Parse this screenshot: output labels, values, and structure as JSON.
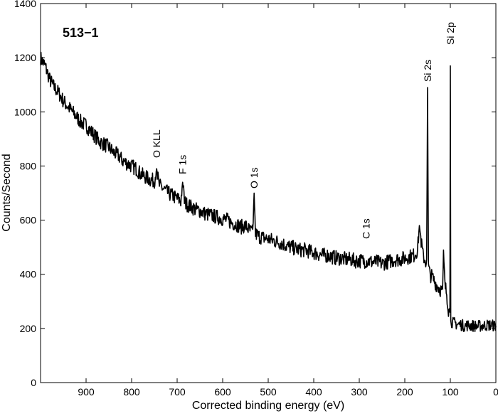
{
  "chart_data": {
    "type": "line",
    "title": "",
    "sample_label": "513−1",
    "xlabel": "Corrected binding energy (eV)",
    "ylabel": "Counts/Second",
    "xlim": [
      1000,
      0
    ],
    "x_reversed": true,
    "ylim": [
      0,
      1400
    ],
    "xticks": [
      900,
      800,
      700,
      600,
      500,
      400,
      300,
      200,
      100,
      0
    ],
    "yticks": [
      0,
      200,
      400,
      600,
      800,
      1000,
      1200,
      1400
    ],
    "grid": false,
    "line_color": "#000000",
    "series": [
      {
        "x": [
          1000,
          990,
          980,
          970,
          960,
          950,
          940,
          930,
          920,
          910,
          900,
          890,
          880,
          870,
          860,
          850,
          840,
          830,
          820,
          810,
          800,
          790,
          780,
          770,
          760,
          750,
          745,
          740,
          730,
          720,
          710,
          700,
          692,
          688,
          684,
          680,
          670,
          660,
          650,
          640,
          630,
          620,
          610,
          600,
          590,
          580,
          570,
          560,
          550,
          540,
          534,
          531,
          528,
          520,
          510,
          500,
          490,
          480,
          470,
          460,
          450,
          440,
          430,
          420,
          410,
          400,
          390,
          380,
          370,
          360,
          350,
          340,
          330,
          320,
          310,
          300,
          290,
          280,
          270,
          260,
          250,
          240,
          230,
          220,
          210,
          200,
          190,
          180,
          172,
          168,
          164,
          160,
          155,
          152,
          150,
          148,
          145,
          140,
          135,
          130,
          125,
          120,
          117,
          115,
          112,
          108,
          104,
          101,
          100,
          99,
          97,
          94,
          90,
          85,
          80,
          70,
          60,
          50,
          40,
          30,
          20,
          10,
          0
        ],
        "y": [
          1200,
          1170,
          1120,
          1090,
          1070,
          1040,
          1020,
          1000,
          980,
          960,
          950,
          930,
          910,
          890,
          880,
          870,
          850,
          840,
          820,
          810,
          800,
          790,
          770,
          760,
          750,
          745,
          790,
          730,
          715,
          700,
          690,
          680,
          670,
          740,
          670,
          660,
          650,
          640,
          635,
          625,
          620,
          615,
          610,
          605,
          600,
          590,
          585,
          575,
          580,
          560,
          555,
          700,
          550,
          540,
          535,
          530,
          525,
          520,
          515,
          505,
          500,
          495,
          490,
          490,
          485,
          480,
          475,
          470,
          470,
          465,
          460,
          460,
          455,
          455,
          450,
          450,
          450,
          448,
          445,
          445,
          440,
          445,
          450,
          455,
          455,
          460,
          465,
          470,
          490,
          580,
          520,
          470,
          450,
          440,
          1090,
          430,
          400,
          390,
          375,
          360,
          350,
          340,
          335,
          490,
          360,
          330,
          270,
          260,
          1170,
          230,
          225,
          220,
          220,
          215,
          215,
          210,
          212,
          210,
          208,
          210,
          212,
          212,
          210
        ]
      }
    ],
    "annotations": [
      {
        "text": "O KLL",
        "x": 745
      },
      {
        "text": "F 1s",
        "x": 688
      },
      {
        "text": "O 1s",
        "x": 531
      },
      {
        "text": "C 1s",
        "x": 285
      },
      {
        "text": "Si 2s",
        "x": 150
      },
      {
        "text": "Si 2p",
        "x": 100
      }
    ]
  }
}
